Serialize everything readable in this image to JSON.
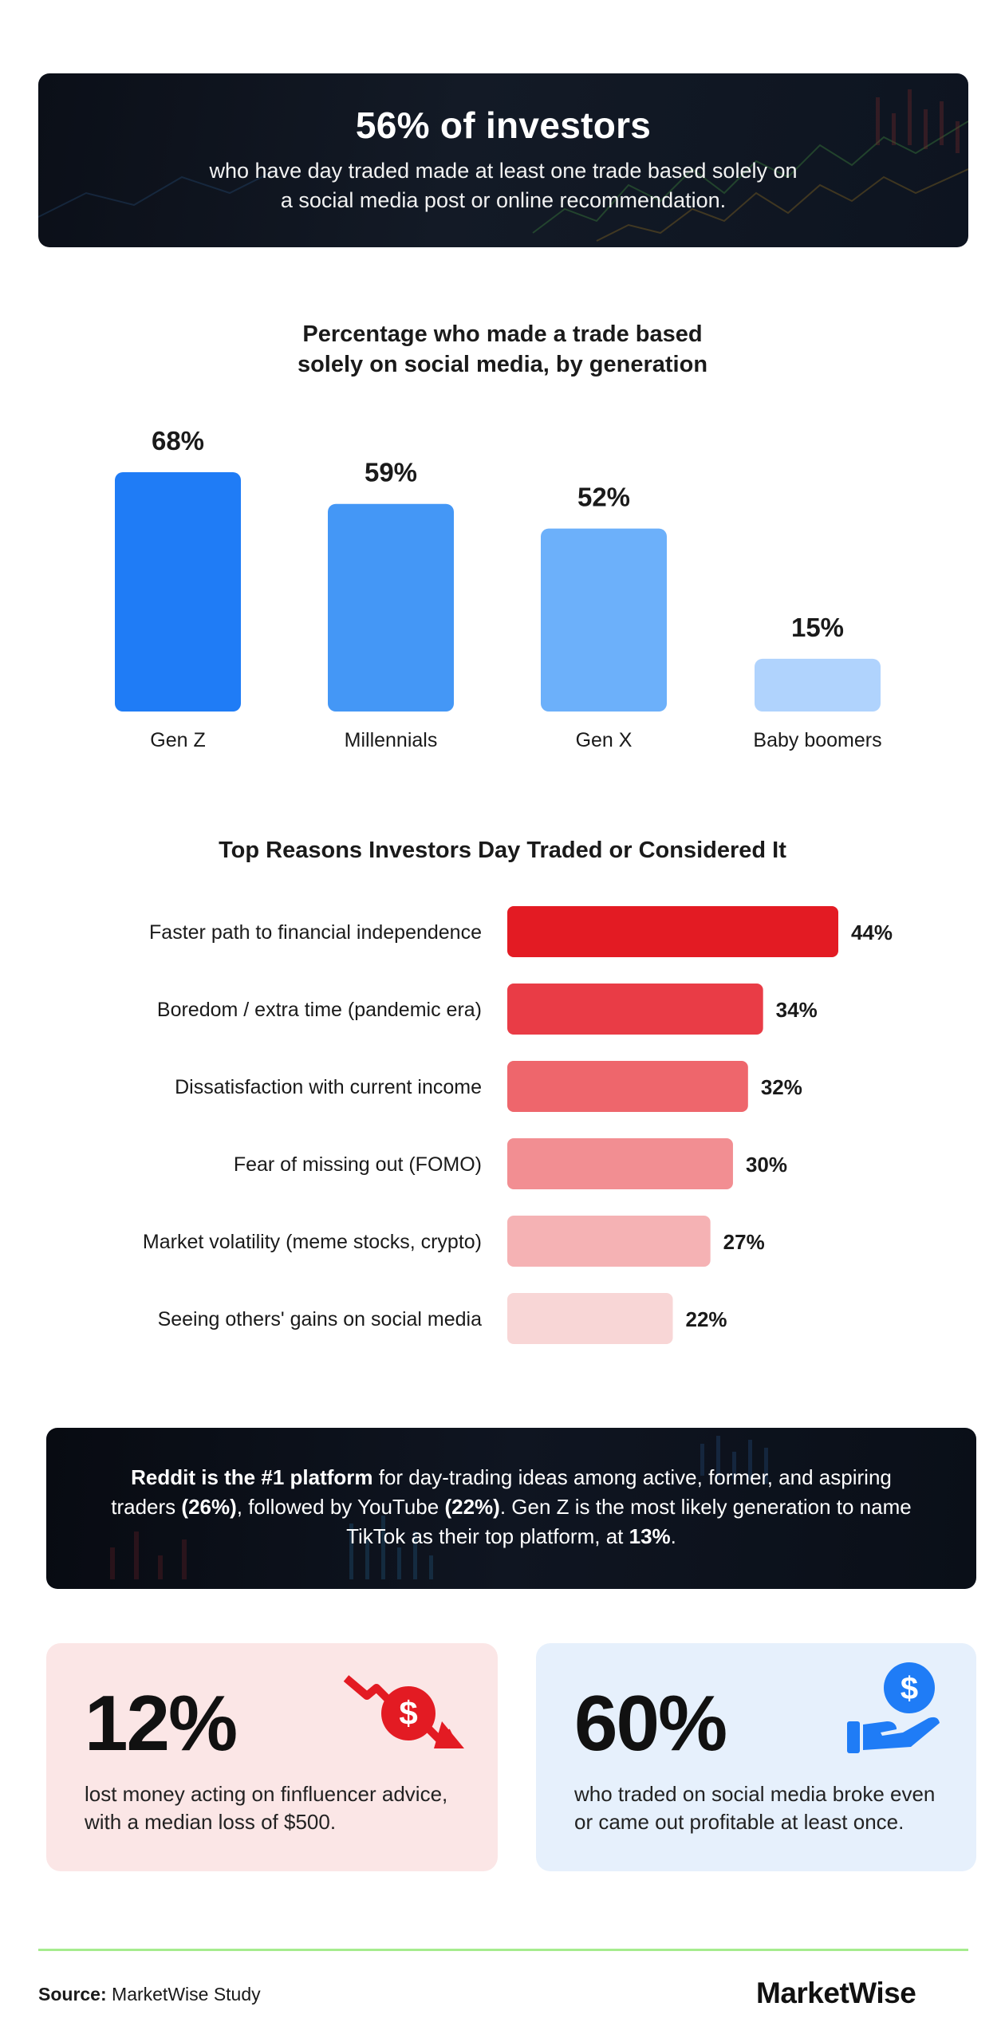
{
  "banner": {
    "title": "56% of investors",
    "subtitle": "who have day traded made at least one trade based solely on a social media post or online recommendation."
  },
  "generation_chart_title": "Percentage who made a trade based solely on social media, by generation",
  "reasons_chart_title": "Top Reasons Investors Day Traded or Considered It",
  "chart_data": [
    {
      "type": "bar",
      "orientation": "vertical",
      "title": "Percentage who made a trade based solely on social media, by generation",
      "categories": [
        "Gen Z",
        "Millennials",
        "Gen X",
        "Baby boomers"
      ],
      "values": [
        68,
        59,
        52,
        15
      ],
      "value_labels": [
        "68%",
        "59%",
        "52%",
        "15%"
      ],
      "unit": "%",
      "colors": [
        "#1f7cf6",
        "#4497f6",
        "#6cb0fa",
        "#b0d3fd"
      ],
      "grid": false,
      "legend": false
    },
    {
      "type": "bar",
      "orientation": "horizontal",
      "title": "Top Reasons Investors Day Traded or Considered It",
      "categories": [
        "Faster path to financial independence",
        "Boredom / extra time (pandemic era)",
        "Dissatisfaction with current income",
        "Fear of missing out (FOMO)",
        "Market volatility (meme stocks, crypto)",
        "Seeing others' gains on social media"
      ],
      "values": [
        44,
        34,
        32,
        30,
        27,
        22
      ],
      "value_labels": [
        "44%",
        "34%",
        "32%",
        "30%",
        "27%",
        "22%"
      ],
      "unit": "%",
      "colors": [
        "#e31b23",
        "#e93c46",
        "#ee666c",
        "#f28e92",
        "#f5b2b4",
        "#f8d6d6"
      ],
      "grid": false,
      "legend": false
    }
  ],
  "reddit": {
    "bold1": "Reddit is the #1 platform",
    "text1": " for day-trading ideas among active, former, and aspiring traders ",
    "bold2": "(26%)",
    "text2": ", followed by YouTube ",
    "bold3": "(22%)",
    "text3": ". Gen Z is the most likely generation to name TikTok as their top platform, at ",
    "bold4": "13%",
    "text4": "."
  },
  "cards": {
    "loss": {
      "stat": "12%",
      "text": "lost money acting on finfluencer advice, with a median loss of $500.",
      "icon": "money-down-arrow-icon",
      "color": "#e31b23"
    },
    "profit": {
      "stat": "60%",
      "text": "who traded on social media broke even or came out profitable at least once.",
      "icon": "hand-holding-dollar-icon",
      "color": "#1f7cf6"
    }
  },
  "footer": {
    "source_label": "Source:",
    "source_text": " MarketWise Study",
    "logo": "MarketWise"
  },
  "colors": {
    "accent_green": "#a6ec8e",
    "dark_banner": "#0b0f18"
  }
}
